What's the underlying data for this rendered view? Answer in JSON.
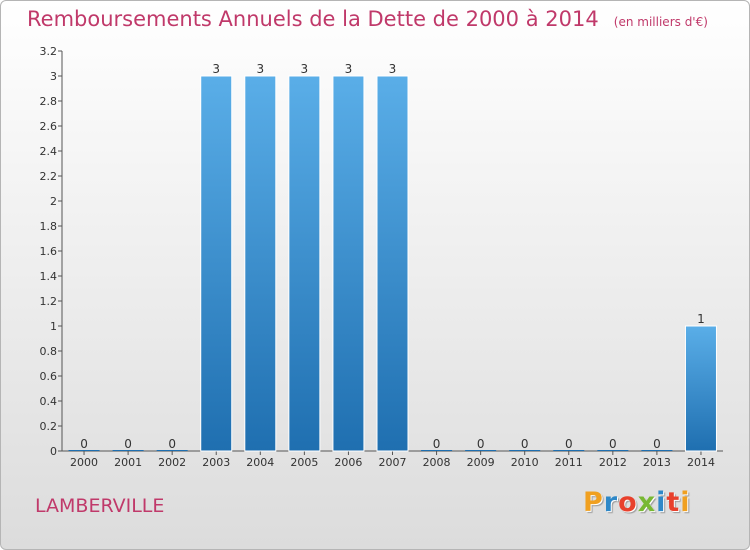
{
  "header": {
    "title": "Remboursements Annuels de la Dette de 2000 à 2014",
    "unit": "(en milliers d'€)"
  },
  "footer": {
    "commune": "LAMBERVILLE",
    "logo_letters": [
      "P",
      "r",
      "o",
      "x",
      "i",
      "t",
      "i"
    ],
    "logo_colors": [
      "#f0a020",
      "#2e88c8",
      "#e8402c",
      "#78b833",
      "#2e88c8",
      "#e8402c",
      "#f0a020"
    ]
  },
  "colors": {
    "title": "#c0396a",
    "bar_light": "#5aaee8",
    "bar_dark": "#1f6fb0"
  },
  "chart_data": {
    "type": "bar",
    "title": "Remboursements Annuels de la Dette de 2000 à 2014",
    "xlabel": "",
    "ylabel": "",
    "categories": [
      "2000",
      "2001",
      "2002",
      "2003",
      "2004",
      "2005",
      "2006",
      "2007",
      "2008",
      "2009",
      "2010",
      "2011",
      "2012",
      "2013",
      "2014"
    ],
    "values": [
      0,
      0,
      0,
      3,
      3,
      3,
      3,
      3,
      0,
      0,
      0,
      0,
      0,
      0,
      1
    ],
    "data_labels": [
      "0",
      "0",
      "0",
      "3",
      "3",
      "3",
      "3",
      "3",
      "0",
      "0",
      "0",
      "0",
      "0",
      "0",
      "1"
    ],
    "ylim": [
      0,
      3.2
    ],
    "y_ticks": [
      {
        "value": 0,
        "label": "0"
      },
      {
        "value": 0.2,
        "label": "0.2"
      },
      {
        "value": 0.4,
        "label": "0.4"
      },
      {
        "value": 0.6,
        "label": "0.6"
      },
      {
        "value": 0.8,
        "label": "0.8"
      },
      {
        "value": 1.0,
        "label": "1"
      },
      {
        "value": 1.2,
        "label": "1.2"
      },
      {
        "value": 1.4,
        "label": "1.4"
      },
      {
        "value": 1.6,
        "label": "1.6"
      },
      {
        "value": 1.8,
        "label": "1.8"
      },
      {
        "value": 2.0,
        "label": "2"
      },
      {
        "value": 2.2,
        "label": "2.2"
      },
      {
        "value": 2.4,
        "label": "2.4"
      },
      {
        "value": 2.6,
        "label": "2.6"
      },
      {
        "value": 2.8,
        "label": "2.8"
      },
      {
        "value": 3.0,
        "label": "3"
      },
      {
        "value": 3.2,
        "label": "3.2"
      }
    ],
    "grid": false,
    "legend": "none"
  }
}
